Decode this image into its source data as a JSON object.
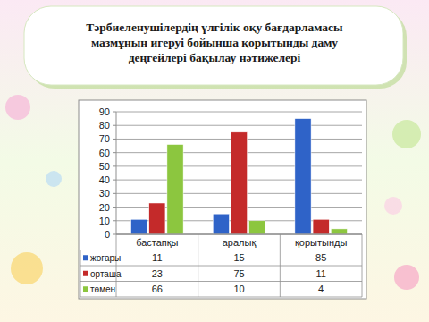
{
  "chart_data": {
    "type": "bar",
    "title": "Тәрбиеленушілердің үлгілік оқу бағдарламасы мазмұнын игеруі бойынша қорытынды даму деңгейлері бақылау нәтижелері",
    "categories": [
      "бастапқы",
      "аралық",
      "қорытынды"
    ],
    "series": [
      {
        "name": "жоғары",
        "color": "#2f63c8",
        "values": [
          11,
          15,
          85
        ]
      },
      {
        "name": "орташа",
        "color": "#c42a2a",
        "values": [
          23,
          75,
          11
        ]
      },
      {
        "name": "төмен",
        "color": "#8cc63f",
        "values": [
          66,
          10,
          4
        ]
      }
    ],
    "ylim": [
      0,
      90
    ],
    "yticks": [
      0,
      10,
      20,
      30,
      40,
      50,
      60,
      70,
      80,
      90
    ],
    "grid": true,
    "legend": "bottom"
  }
}
